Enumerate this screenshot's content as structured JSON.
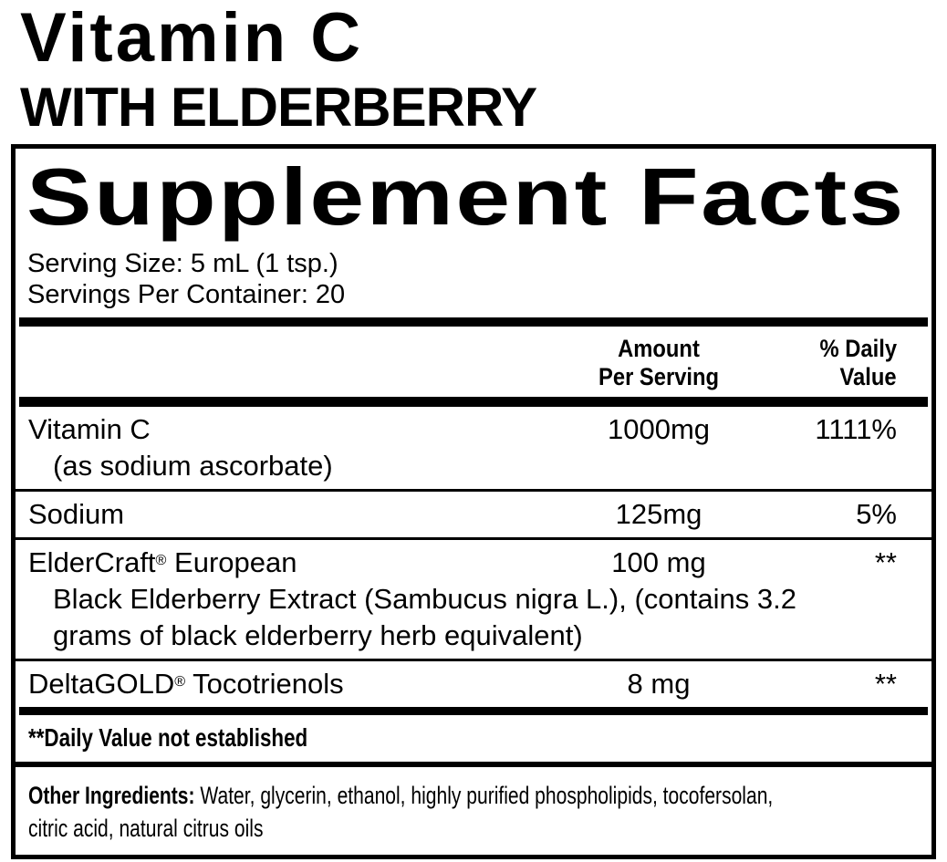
{
  "colors": {
    "ink": "#000000",
    "paper": "#ffffff"
  },
  "product": {
    "title": "Vitamin C",
    "subtitle": "WITH ELDERBERRY"
  },
  "panel": {
    "title": "Supplement Facts",
    "serving_size": "Serving Size: 5 mL (1 tsp.)",
    "servings_per_container": "Servings Per Container: 20",
    "columns": {
      "amount_line1": "Amount",
      "amount_line2": "Per Serving",
      "dv_line1": "% Daily",
      "dv_line2": "Value"
    },
    "rows": [
      {
        "name": "Vitamin C",
        "detail": "(as sodium ascorbate)",
        "amount": "1000mg",
        "daily_value": "1111%"
      },
      {
        "name": "Sodium",
        "amount": "125mg",
        "daily_value": "5%"
      },
      {
        "name": "ElderCraft",
        "trademark": "®",
        "name_rest": " European",
        "detail_line1": "Black Elderberry Extract (Sambucus nigra L.), (contains 3.2",
        "detail_line2": "grams of black elderberry herb equivalent)",
        "amount": "100 mg",
        "daily_value": "**"
      },
      {
        "name": "DeltaGOLD",
        "trademark": "®",
        "name_rest": " Tocotrienols",
        "amount": "8 mg",
        "daily_value": "**"
      }
    ],
    "footnote": "**Daily Value not established",
    "other_ingredients": {
      "label": "Other Ingredients:",
      "line1_rest": " Water, glycerin, ethanol, highly purified phospholipids, tocofersolan,",
      "line2": "citric acid, natural citrus oils"
    }
  }
}
